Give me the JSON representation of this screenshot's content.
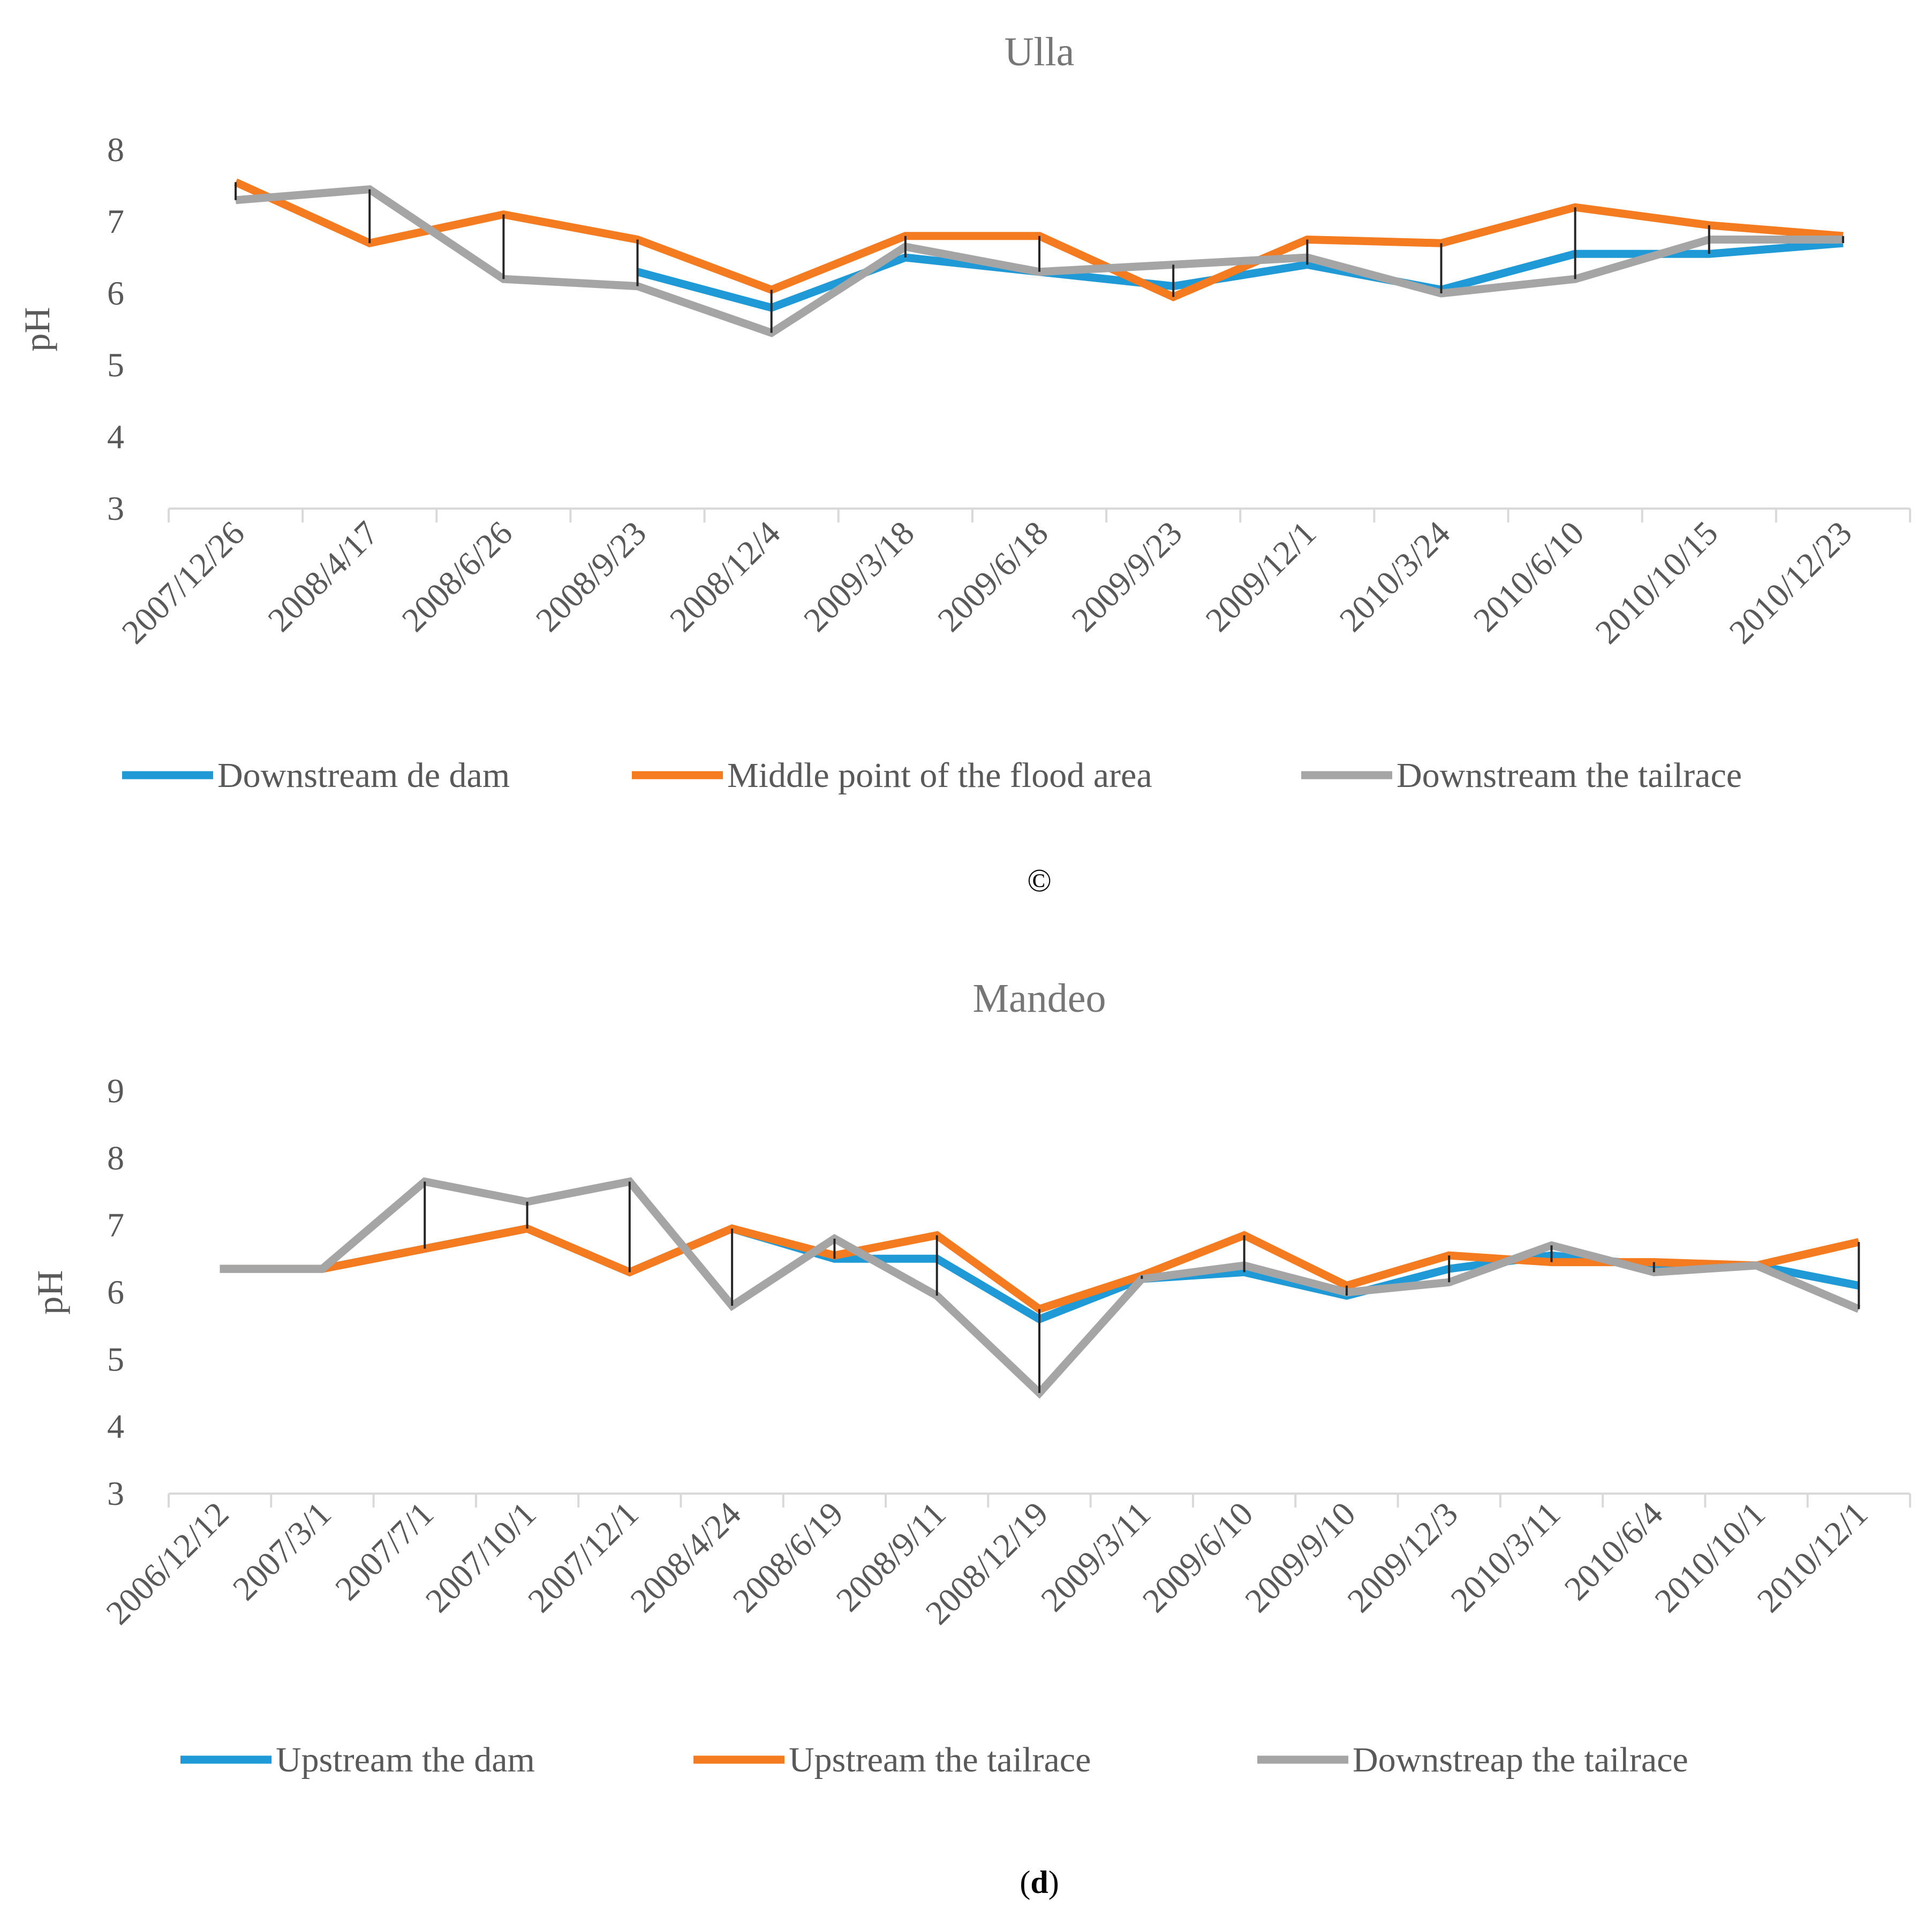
{
  "colors": {
    "blue": "#1f9ad6",
    "orange": "#f47b20",
    "gray": "#a5a5a5",
    "axis": "#d9d9d9",
    "droplines": "#262626"
  },
  "chart_data": [
    {
      "type": "line",
      "title": "Ulla",
      "ylabel": "pH",
      "xlabel": "",
      "ylim": [
        3,
        8
      ],
      "yticks": [
        3,
        4,
        5,
        6,
        7,
        8
      ],
      "grid": false,
      "drop_lines": true,
      "legend_position": "bottom",
      "caption": "©",
      "categories": [
        "2007/12/26",
        "2008/4/17",
        "2008/6/26",
        "2008/9/23",
        "2008/12/4",
        "2009/3/18",
        "2009/6/18",
        "2009/9/23",
        "2009/12/1",
        "2010/3/24",
        "2010/6/10",
        "2010/10/15",
        "2010/12/23"
      ],
      "series": [
        {
          "name": "Downstream de dam",
          "color": "#1f9ad6",
          "values": [
            null,
            null,
            null,
            6.3,
            5.8,
            6.5,
            6.3,
            6.1,
            6.4,
            6.05,
            6.55,
            6.55,
            6.7
          ]
        },
        {
          "name": "Middle point of the flood area",
          "color": "#f47b20",
          "values": [
            7.55,
            6.7,
            7.1,
            6.75,
            6.05,
            6.8,
            6.8,
            5.95,
            6.75,
            6.7,
            7.2,
            6.95,
            6.8
          ]
        },
        {
          "name": "Downstream the tailrace",
          "color": "#a5a5a5",
          "values": [
            7.3,
            7.45,
            6.2,
            6.1,
            5.45,
            6.65,
            6.3,
            6.4,
            6.5,
            6.0,
            6.2,
            6.75,
            6.75
          ]
        }
      ]
    },
    {
      "type": "line",
      "title": "Mandeo",
      "ylabel": "pH",
      "xlabel": "",
      "ylim": [
        3,
        9
      ],
      "yticks": [
        3,
        4,
        5,
        6,
        7,
        8,
        9
      ],
      "grid": false,
      "drop_lines": true,
      "legend_position": "bottom",
      "caption_bold": "d",
      "caption_open": "(",
      "caption_close": ")",
      "categories": [
        "2006/12/12",
        "2007/3/1",
        "2007/7/1",
        "2007/10/1",
        "2007/12/1",
        "2008/4/24",
        "2008/6/19",
        "2008/9/11",
        "2008/12/19",
        "2009/3/11",
        "2009/6/10",
        "2009/9/10",
        "2009/12/3",
        "2010/3/11",
        "2010/6/4",
        "2010/10/1",
        "2010/12/1"
      ],
      "series": [
        {
          "name": "Upstream the dam",
          "color": "#1f9ad6",
          "values": [
            6.35,
            6.35,
            6.65,
            6.95,
            6.3,
            6.95,
            6.5,
            6.5,
            5.6,
            6.2,
            6.3,
            5.95,
            6.35,
            6.55,
            6.4,
            6.4,
            6.1
          ]
        },
        {
          "name": "Upstream the tailrace",
          "color": "#f47b20",
          "values": [
            6.35,
            6.35,
            6.65,
            6.95,
            6.3,
            6.95,
            6.55,
            6.85,
            5.75,
            6.25,
            6.85,
            6.1,
            6.55,
            6.45,
            6.45,
            6.4,
            6.75
          ]
        },
        {
          "name": "Downstreap the tailrace",
          "color": "#a5a5a5",
          "values": [
            6.35,
            6.35,
            7.65,
            7.35,
            7.65,
            5.8,
            6.8,
            5.95,
            4.5,
            6.2,
            6.4,
            6.0,
            6.15,
            6.7,
            6.3,
            6.4,
            5.75
          ]
        }
      ]
    }
  ]
}
